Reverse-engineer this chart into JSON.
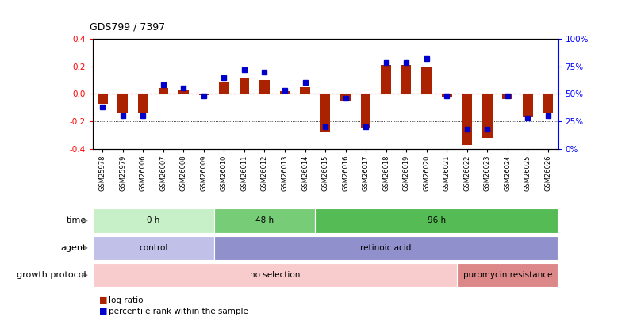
{
  "title": "GDS799 / 7397",
  "samples": [
    "GSM25978",
    "GSM25979",
    "GSM26006",
    "GSM26007",
    "GSM26008",
    "GSM26009",
    "GSM26010",
    "GSM26011",
    "GSM26012",
    "GSM26013",
    "GSM26014",
    "GSM26015",
    "GSM26016",
    "GSM26017",
    "GSM26018",
    "GSM26019",
    "GSM26020",
    "GSM26021",
    "GSM26022",
    "GSM26023",
    "GSM26024",
    "GSM26025",
    "GSM26026"
  ],
  "log_ratio": [
    -0.07,
    -0.14,
    -0.14,
    0.04,
    0.03,
    -0.01,
    0.08,
    0.12,
    0.1,
    0.02,
    0.05,
    -0.28,
    -0.05,
    -0.25,
    0.21,
    0.21,
    0.2,
    -0.02,
    -0.37,
    -0.32,
    -0.04,
    -0.17,
    -0.14
  ],
  "percentile": [
    38,
    30,
    30,
    58,
    55,
    48,
    65,
    72,
    70,
    53,
    60,
    20,
    46,
    20,
    78,
    78,
    82,
    48,
    18,
    18,
    48,
    28,
    30
  ],
  "bar_color": "#aa2200",
  "dot_color": "#0000cc",
  "bg_color": "#ffffff",
  "ylim": [
    -0.4,
    0.4
  ],
  "yticks_left": [
    -0.4,
    -0.2,
    0.0,
    0.2,
    0.4
  ],
  "time_groups": [
    {
      "label": "0 h",
      "start": 0,
      "end": 6,
      "color": "#c8f0c8"
    },
    {
      "label": "48 h",
      "start": 6,
      "end": 11,
      "color": "#77cc77"
    },
    {
      "label": "96 h",
      "start": 11,
      "end": 23,
      "color": "#55bb55"
    }
  ],
  "agent_groups": [
    {
      "label": "control",
      "start": 0,
      "end": 6,
      "color": "#c0c0e8"
    },
    {
      "label": "retinoic acid",
      "start": 6,
      "end": 23,
      "color": "#9090cc"
    }
  ],
  "growth_groups": [
    {
      "label": "no selection",
      "start": 0,
      "end": 18,
      "color": "#f8cccc"
    },
    {
      "label": "puromycin resistance",
      "start": 18,
      "end": 23,
      "color": "#dd8888"
    }
  ],
  "row_labels": [
    "time",
    "agent",
    "growth protocol"
  ],
  "legend_bar_label": "log ratio",
  "legend_dot_label": "percentile rank within the sample"
}
